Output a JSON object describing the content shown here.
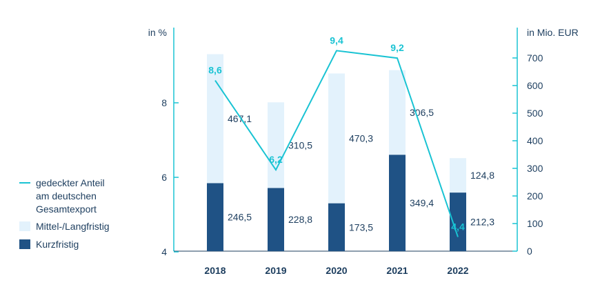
{
  "chart_data": {
    "type": "bar",
    "categories": [
      "2018",
      "2019",
      "2020",
      "2021",
      "2022"
    ],
    "series": [
      {
        "name": "Kurzfristig",
        "values": [
          246.5,
          228.8,
          173.5,
          349.4,
          212.3
        ],
        "color": "#1f5285"
      },
      {
        "name": "Mittel-/Langfristig",
        "values": [
          467.1,
          310.5,
          470.3,
          306.5,
          124.8
        ],
        "color": "#e3f2fc"
      }
    ],
    "line_series": {
      "name": "gedeckter Anteil am deutschen Gesamtexport",
      "legend_lines": [
        "gedeckter Anteil",
        "am deutschen",
        "Gesamtexport"
      ],
      "values": [
        8.6,
        6.2,
        9.4,
        9.2,
        4.4
      ],
      "labels": [
        "8,6",
        "6,2",
        "9,4",
        "9,2",
        "4,4"
      ],
      "color": "#19c3d3"
    },
    "left_axis": {
      "unit": "in %",
      "min": 4,
      "max": 10,
      "ticks": [
        4,
        6,
        8
      ],
      "tick_labels": [
        "4",
        "6",
        "8"
      ]
    },
    "right_axis": {
      "unit": "in Mio. EUR",
      "min": 0,
      "max": 800,
      "ticks": [
        0,
        100,
        200,
        300,
        400,
        500,
        600,
        700
      ],
      "tick_labels": [
        "0",
        "100",
        "200",
        "300",
        "400",
        "500",
        "600",
        "700"
      ]
    },
    "bar_labels": {
      "Kurzfristig": [
        "246,5",
        "228,8",
        "173,5",
        "349,4",
        "212,3"
      ],
      "Mittel-/Langfristig": [
        "467,1",
        "310,5",
        "470,3",
        "306,5",
        "124,8"
      ]
    },
    "legend": {
      "position": "left",
      "items": [
        {
          "label": "gedeckter Anteil am deutschen Gesamtexport",
          "kind": "line"
        },
        {
          "label": "Mittel-/Langfristig",
          "kind": "bar"
        },
        {
          "label": "Kurzfristig",
          "kind": "bar"
        }
      ]
    },
    "grid": false,
    "colors": {
      "axis": "#19c3d3",
      "text": "#1c3d5e"
    }
  }
}
